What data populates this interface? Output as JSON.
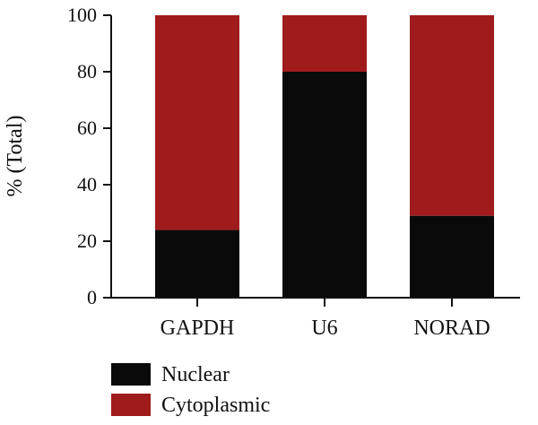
{
  "chart_data": {
    "type": "bar",
    "stacked": true,
    "categories": [
      "GAPDH",
      "U6",
      "NORAD"
    ],
    "series": [
      {
        "name": "Nuclear",
        "color": "#0a0a0a",
        "values": [
          24,
          80,
          29
        ]
      },
      {
        "name": "Cytoplasmic",
        "color": "#a01c1c",
        "values": [
          76,
          20,
          71
        ]
      }
    ],
    "ylabel": "% (Total)",
    "xlabel": "",
    "ylim": [
      0,
      100
    ],
    "yticks": [
      0,
      20,
      40,
      60,
      80,
      100
    ],
    "ytick_labels": [
      "0",
      "20",
      "40",
      "60",
      "80",
      "100"
    ],
    "grid": false,
    "legend_position": "bottom-left"
  }
}
